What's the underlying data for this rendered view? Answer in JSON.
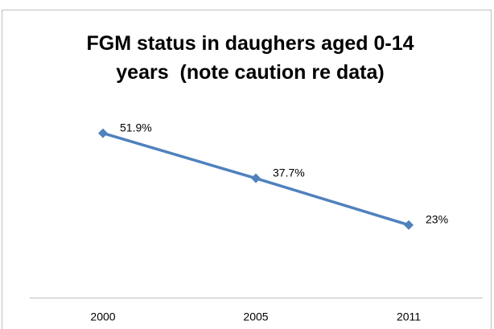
{
  "chart_data": {
    "type": "line",
    "title": [
      "FGM status in daughers aged 0-14",
      "years  (note caution re data)"
    ],
    "categories": [
      "2000",
      "2005",
      "2011"
    ],
    "values": [
      51.9,
      37.7,
      23
    ],
    "value_labels": [
      "51.9%",
      "37.7%",
      "23%"
    ],
    "color": "#4f81bd",
    "ylim": [
      0,
      60
    ]
  }
}
